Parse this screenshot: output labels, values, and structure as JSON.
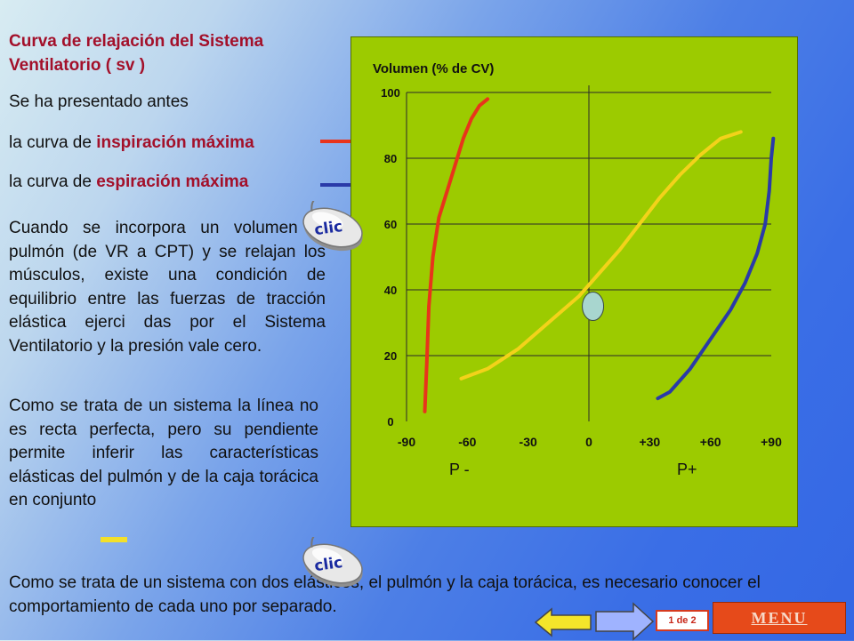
{
  "title": "Curva de relajación del Sistema Ventilatorio ( sv )",
  "intro": "Se ha presentado antes",
  "inspiration": {
    "prefix": "la curva de ",
    "bold": "inspiración máxima"
  },
  "expiration": {
    "prefix": "la curva de ",
    "bold": "espiración máxima"
  },
  "paragraph1": "Cuando se incorpora un volumen al pulmón (de VR a CPT) y se relajan los músculos, existe una condición de equilibrio entre las fuerzas de tracción elástica ejerci das por el Sistema Ventilatorio y la presión vale cero.",
  "paragraph2": "Como se trata de un sistema la línea no es recta perfecta, pero su pendiente permite inferir las características elásticas del pulmón y de la caja torácica en conjunto",
  "bottom_text": "Como se trata de un sistema con dos elásticos, el pulmón y la caja torácica, es necesario conocer el comportamiento de cada uno por separado.",
  "clic_label": "clic",
  "nav": {
    "page": "1 de 2",
    "menu": "MENU"
  },
  "colors": {
    "inspiration": "#e8341b",
    "expiration": "#2a3aa8",
    "relaxation": "#f3d21a",
    "chart_bg": "#9ccb00",
    "title": "#a3102a"
  },
  "chart_data": {
    "type": "line",
    "title": "Volumen (% de CV)",
    "ylabel": "Volumen (% de CV)",
    "xlabel": "",
    "x_ticks": [
      "-90",
      "-60",
      "-30",
      "0",
      "+30",
      "+60",
      "+90"
    ],
    "y_ticks": [
      "0",
      "20",
      "40",
      "60",
      "80",
      "100"
    ],
    "x_side_labels": {
      "negative": "P -",
      "positive": "P+"
    },
    "xlim": [
      -90,
      90
    ],
    "ylim": [
      0,
      100
    ],
    "grid": true,
    "series": [
      {
        "key": "inspiration",
        "color": "#e8341b",
        "points": [
          [
            -81,
            3
          ],
          [
            -80,
            18
          ],
          [
            -79,
            35
          ],
          [
            -77,
            50
          ],
          [
            -74,
            62
          ],
          [
            -70,
            70
          ],
          [
            -66,
            78
          ],
          [
            -62,
            86
          ],
          [
            -58,
            92
          ],
          [
            -54,
            96
          ],
          [
            -50,
            98
          ]
        ]
      },
      {
        "key": "relaxation",
        "color": "#f3d21a",
        "points": [
          [
            -63,
            13
          ],
          [
            -50,
            16
          ],
          [
            -35,
            22
          ],
          [
            -20,
            30
          ],
          [
            -5,
            38
          ],
          [
            5,
            45
          ],
          [
            15,
            52
          ],
          [
            25,
            60
          ],
          [
            35,
            68
          ],
          [
            45,
            75
          ],
          [
            55,
            81
          ],
          [
            65,
            86
          ],
          [
            75,
            88
          ]
        ]
      },
      {
        "key": "expiration",
        "color": "#2a3aa8",
        "points": [
          [
            34,
            7
          ],
          [
            40,
            9
          ],
          [
            50,
            16
          ],
          [
            60,
            25
          ],
          [
            70,
            34
          ],
          [
            77,
            42
          ],
          [
            83,
            51
          ],
          [
            87,
            60
          ],
          [
            89,
            70
          ],
          [
            90,
            80
          ],
          [
            91,
            86
          ]
        ]
      }
    ],
    "equilibrium_point": [
      2,
      35
    ]
  }
}
